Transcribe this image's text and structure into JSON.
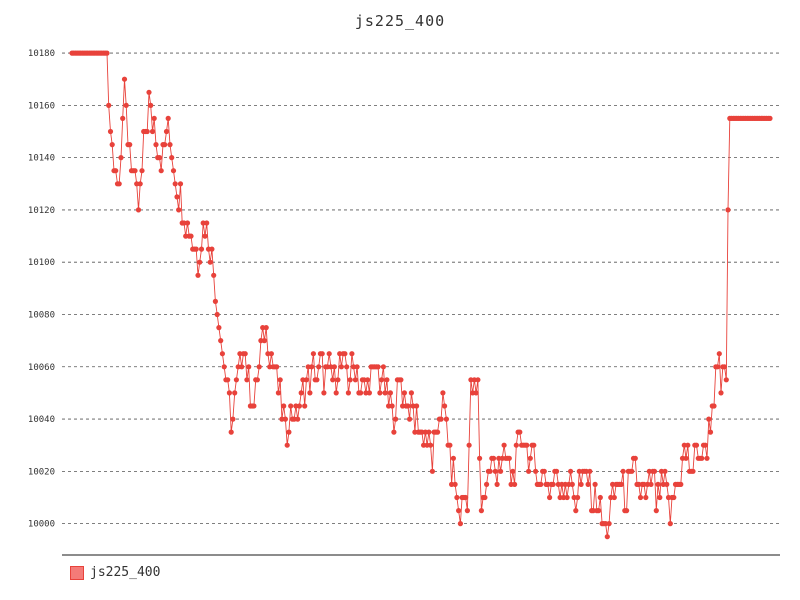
{
  "title": "js225_400",
  "colors": {
    "series": "#e8423b",
    "series_fill": "#f47b78",
    "grid": "#555555",
    "axis": "#666666"
  },
  "chart_data": {
    "type": "line",
    "title": "js225_400",
    "xlabel": "",
    "ylabel": "",
    "ylim": [
      9988,
      10185
    ],
    "yticks": [
      10000,
      10020,
      10040,
      10060,
      10080,
      10100,
      10120,
      10140,
      10160,
      10180
    ],
    "ytick_labels": [
      "10000",
      "10020",
      "10040",
      "10060",
      "10080",
      "10100",
      "10120",
      "10140",
      "10160",
      "10180"
    ],
    "grid": true,
    "grid_style": "dashed",
    "legend": "bottom-left",
    "x_count": 400,
    "series": [
      {
        "name": "js225_400",
        "keypoints": [
          [
            0,
            10180
          ],
          [
            20,
            10180
          ],
          [
            21,
            10160
          ],
          [
            22,
            10150
          ],
          [
            24,
            10140
          ],
          [
            26,
            10130
          ],
          [
            28,
            10145
          ],
          [
            30,
            10165
          ],
          [
            32,
            10150
          ],
          [
            34,
            10140
          ],
          [
            36,
            10130
          ],
          [
            38,
            10120
          ],
          [
            40,
            10135
          ],
          [
            42,
            10150
          ],
          [
            44,
            10160
          ],
          [
            46,
            10155
          ],
          [
            48,
            10150
          ],
          [
            50,
            10145
          ],
          [
            52,
            10140
          ],
          [
            54,
            10150
          ],
          [
            56,
            10145
          ],
          [
            58,
            10140
          ],
          [
            60,
            10130
          ],
          [
            62,
            10125
          ],
          [
            64,
            10120
          ],
          [
            66,
            10115
          ],
          [
            68,
            10110
          ],
          [
            70,
            10105
          ],
          [
            72,
            10100
          ],
          [
            74,
            10110
          ],
          [
            76,
            10115
          ],
          [
            78,
            10110
          ],
          [
            80,
            10100
          ],
          [
            82,
            10090
          ],
          [
            84,
            10080
          ],
          [
            86,
            10065
          ],
          [
            88,
            10055
          ],
          [
            90,
            10045
          ],
          [
            92,
            10040
          ],
          [
            94,
            10050
          ],
          [
            96,
            10060
          ],
          [
            98,
            10070
          ],
          [
            100,
            10060
          ],
          [
            102,
            10050
          ],
          [
            104,
            10045
          ],
          [
            106,
            10055
          ],
          [
            108,
            10065
          ],
          [
            110,
            10075
          ],
          [
            112,
            10070
          ],
          [
            114,
            10065
          ],
          [
            116,
            10060
          ],
          [
            118,
            10050
          ],
          [
            120,
            10045
          ],
          [
            122,
            10035
          ],
          [
            124,
            10040
          ],
          [
            126,
            10045
          ],
          [
            128,
            10040
          ],
          [
            130,
            10045
          ],
          [
            132,
            10050
          ],
          [
            134,
            10055
          ],
          [
            136,
            10055
          ],
          [
            138,
            10060
          ],
          [
            140,
            10055
          ],
          [
            142,
            10060
          ],
          [
            144,
            10055
          ],
          [
            146,
            10055
          ],
          [
            148,
            10060
          ],
          [
            150,
            10055
          ],
          [
            152,
            10060
          ],
          [
            154,
            10060
          ],
          [
            156,
            10060
          ],
          [
            158,
            10055
          ],
          [
            160,
            10060
          ],
          [
            162,
            10060
          ],
          [
            164,
            10055
          ],
          [
            166,
            10050
          ],
          [
            168,
            10050
          ],
          [
            170,
            10055
          ],
          [
            172,
            10055
          ],
          [
            174,
            10060
          ],
          [
            176,
            10055
          ],
          [
            178,
            10055
          ],
          [
            180,
            10050
          ],
          [
            182,
            10045
          ],
          [
            184,
            10040
          ],
          [
            186,
            10050
          ],
          [
            188,
            10055
          ],
          [
            190,
            10050
          ],
          [
            192,
            10045
          ],
          [
            194,
            10045
          ],
          [
            196,
            10040
          ],
          [
            198,
            10040
          ],
          [
            200,
            10035
          ],
          [
            202,
            10035
          ],
          [
            204,
            10030
          ],
          [
            206,
            10025
          ],
          [
            208,
            10030
          ],
          [
            210,
            10045
          ],
          [
            212,
            10045
          ],
          [
            214,
            10040
          ],
          [
            216,
            10025
          ],
          [
            218,
            10020
          ],
          [
            220,
            10010
          ],
          [
            222,
            10005
          ],
          [
            224,
            10010
          ],
          [
            226,
            10010
          ],
          [
            228,
            10050
          ],
          [
            230,
            10050
          ],
          [
            232,
            10050
          ],
          [
            234,
            10005
          ],
          [
            236,
            10015
          ],
          [
            238,
            10020
          ],
          [
            240,
            10025
          ],
          [
            242,
            10020
          ],
          [
            244,
            10025
          ],
          [
            246,
            10020
          ],
          [
            248,
            10025
          ],
          [
            250,
            10020
          ],
          [
            252,
            10020
          ],
          [
            254,
            10025
          ],
          [
            256,
            10030
          ],
          [
            258,
            10035
          ],
          [
            260,
            10030
          ],
          [
            262,
            10025
          ],
          [
            264,
            10025
          ],
          [
            266,
            10020
          ],
          [
            268,
            10015
          ],
          [
            270,
            10020
          ],
          [
            272,
            10015
          ],
          [
            274,
            10015
          ],
          [
            276,
            10020
          ],
          [
            278,
            10015
          ],
          [
            280,
            10015
          ],
          [
            282,
            10015
          ],
          [
            284,
            10015
          ],
          [
            286,
            10015
          ],
          [
            288,
            10010
          ],
          [
            290,
            10015
          ],
          [
            292,
            10015
          ],
          [
            294,
            10020
          ],
          [
            296,
            10015
          ],
          [
            298,
            10010
          ],
          [
            300,
            10010
          ],
          [
            302,
            10005
          ],
          [
            304,
            10000
          ],
          [
            306,
            9998
          ],
          [
            308,
            10005
          ],
          [
            310,
            10010
          ],
          [
            312,
            10015
          ],
          [
            314,
            10015
          ],
          [
            316,
            10010
          ],
          [
            318,
            10015
          ],
          [
            320,
            10015
          ],
          [
            322,
            10020
          ],
          [
            324,
            10015
          ],
          [
            326,
            10010
          ],
          [
            328,
            10010
          ],
          [
            330,
            10015
          ],
          [
            332,
            10015
          ],
          [
            334,
            10010
          ],
          [
            336,
            10010
          ],
          [
            338,
            10015
          ],
          [
            340,
            10010
          ],
          [
            342,
            10005
          ],
          [
            344,
            10010
          ],
          [
            346,
            10015
          ],
          [
            348,
            10020
          ],
          [
            350,
            10025
          ],
          [
            352,
            10025
          ],
          [
            354,
            10020
          ],
          [
            356,
            10025
          ],
          [
            358,
            10030
          ],
          [
            360,
            10025
          ],
          [
            362,
            10030
          ],
          [
            364,
            10035
          ],
          [
            366,
            10045
          ],
          [
            368,
            10055
          ],
          [
            370,
            10060
          ],
          [
            371,
            10050
          ],
          [
            372,
            10055
          ],
          [
            373,
            10060
          ],
          [
            374,
            10055
          ],
          [
            375,
            10120
          ],
          [
            376,
            10155
          ]
        ]
      }
    ],
    "notes": []
  },
  "legend": {
    "label": "js225_400"
  }
}
